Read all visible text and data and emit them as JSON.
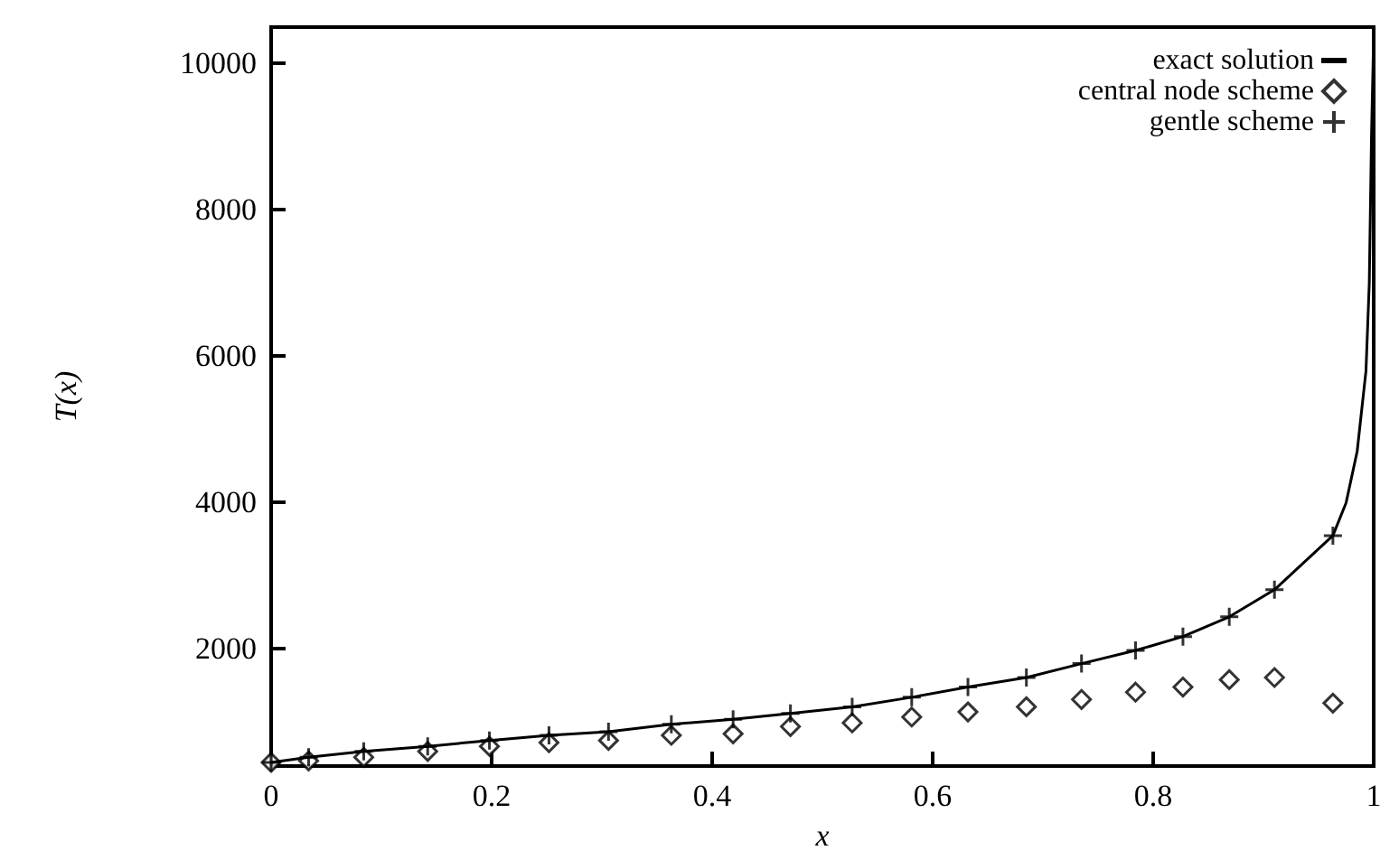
{
  "chart_data": {
    "type": "line",
    "xlabel": "x",
    "ylabel": "T(x)",
    "xlim": [
      0,
      1
    ],
    "xticks": [
      0,
      0.2,
      0.4,
      0.6,
      0.8,
      1
    ],
    "ylim": [
      400,
      10500
    ],
    "yticks": [
      2000,
      4000,
      6000,
      8000,
      10000
    ],
    "grid": false,
    "legend": "top right",
    "line_style": "solid",
    "series": [
      {
        "name": "exact solution",
        "type": "line",
        "marker": "none",
        "color": "#000000",
        "x": [
          0,
          0.034,
          0.084,
          0.142,
          0.198,
          0.252,
          0.306,
          0.363,
          0.419,
          0.471,
          0.527,
          0.581,
          0.632,
          0.685,
          0.735,
          0.784,
          0.827,
          0.869,
          0.91,
          0.963,
          0.975,
          0.985,
          0.993,
          0.996,
          0.998,
          1
        ],
        "values": [
          450,
          520,
          600,
          670,
          750,
          820,
          870,
          970,
          1040,
          1120,
          1210,
          1340,
          1480,
          1610,
          1800,
          1980,
          2170,
          2440,
          2810,
          3550,
          4000,
          4700,
          5800,
          7000,
          9000,
          10400
        ]
      },
      {
        "name": "central node scheme",
        "type": "scatter",
        "marker": "diamond",
        "color": "#000000",
        "x": [
          0,
          0.034,
          0.084,
          0.142,
          0.198,
          0.252,
          0.306,
          0.363,
          0.419,
          0.471,
          0.527,
          0.581,
          0.632,
          0.685,
          0.735,
          0.784,
          0.827,
          0.869,
          0.91,
          0.963
        ],
        "values": [
          450,
          470,
          520,
          600,
          670,
          720,
          750,
          820,
          840,
          940,
          990,
          1070,
          1140,
          1210,
          1310,
          1410,
          1480,
          1580,
          1610,
          1260
        ]
      },
      {
        "name": "gentle scheme",
        "type": "scatter",
        "marker": "cross",
        "color": "#000000",
        "x": [
          0,
          0.034,
          0.084,
          0.142,
          0.198,
          0.252,
          0.306,
          0.363,
          0.419,
          0.471,
          0.527,
          0.581,
          0.632,
          0.685,
          0.735,
          0.784,
          0.827,
          0.869,
          0.91,
          0.963
        ],
        "values": [
          450,
          520,
          600,
          670,
          750,
          820,
          870,
          970,
          1040,
          1120,
          1210,
          1340,
          1480,
          1610,
          1800,
          1980,
          2170,
          2440,
          2810,
          3550
        ]
      }
    ]
  }
}
